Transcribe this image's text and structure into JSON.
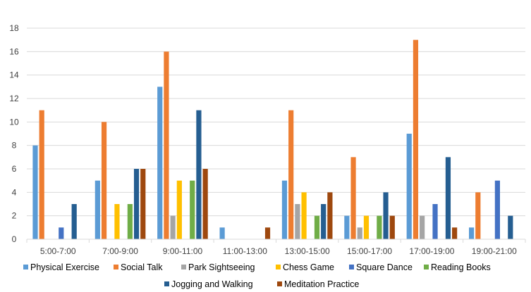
{
  "chart_data": {
    "type": "bar",
    "title": "",
    "xlabel": "",
    "ylabel": "",
    "ylim": [
      0,
      18
    ],
    "yticks": [
      0,
      2,
      4,
      6,
      8,
      10,
      12,
      14,
      16,
      18
    ],
    "grid": true,
    "legend_position": "bottom",
    "categories": [
      "5:00-7:00",
      "7:00-9:00",
      "9:00-11:00",
      "11:00-13:00",
      "13:00-15:00",
      "15:00-17:00",
      "17:00-19:00",
      "19:00-21:00"
    ],
    "series": [
      {
        "name": "Physical Exercise",
        "color": "#5b9bd5",
        "values": [
          8,
          5,
          13,
          1,
          5,
          2,
          9,
          1
        ]
      },
      {
        "name": "Social Talk",
        "color": "#ed7d31",
        "values": [
          11,
          10,
          16,
          0,
          11,
          7,
          17,
          4
        ]
      },
      {
        "name": "Park Sightseeing",
        "color": "#a5a5a5",
        "values": [
          0,
          0,
          2,
          0,
          3,
          1,
          2,
          0
        ]
      },
      {
        "name": "Chess Game",
        "color": "#ffc000",
        "values": [
          0,
          3,
          5,
          0,
          4,
          2,
          0,
          0
        ]
      },
      {
        "name": "Square Dance",
        "color": "#4472c4",
        "values": [
          1,
          0,
          0,
          0,
          0,
          0,
          3,
          5
        ]
      },
      {
        "name": "Reading Books",
        "color": "#70ad47",
        "values": [
          0,
          3,
          5,
          0,
          2,
          2,
          0,
          0
        ]
      },
      {
        "name": "Jogging and Walking",
        "color": "#255e91",
        "values": [
          3,
          6,
          11,
          0,
          3,
          4,
          7,
          2
        ]
      },
      {
        "name": "Meditation Practice",
        "color": "#9e480e",
        "values": [
          0,
          6,
          6,
          1,
          4,
          2,
          1,
          0
        ]
      }
    ]
  }
}
